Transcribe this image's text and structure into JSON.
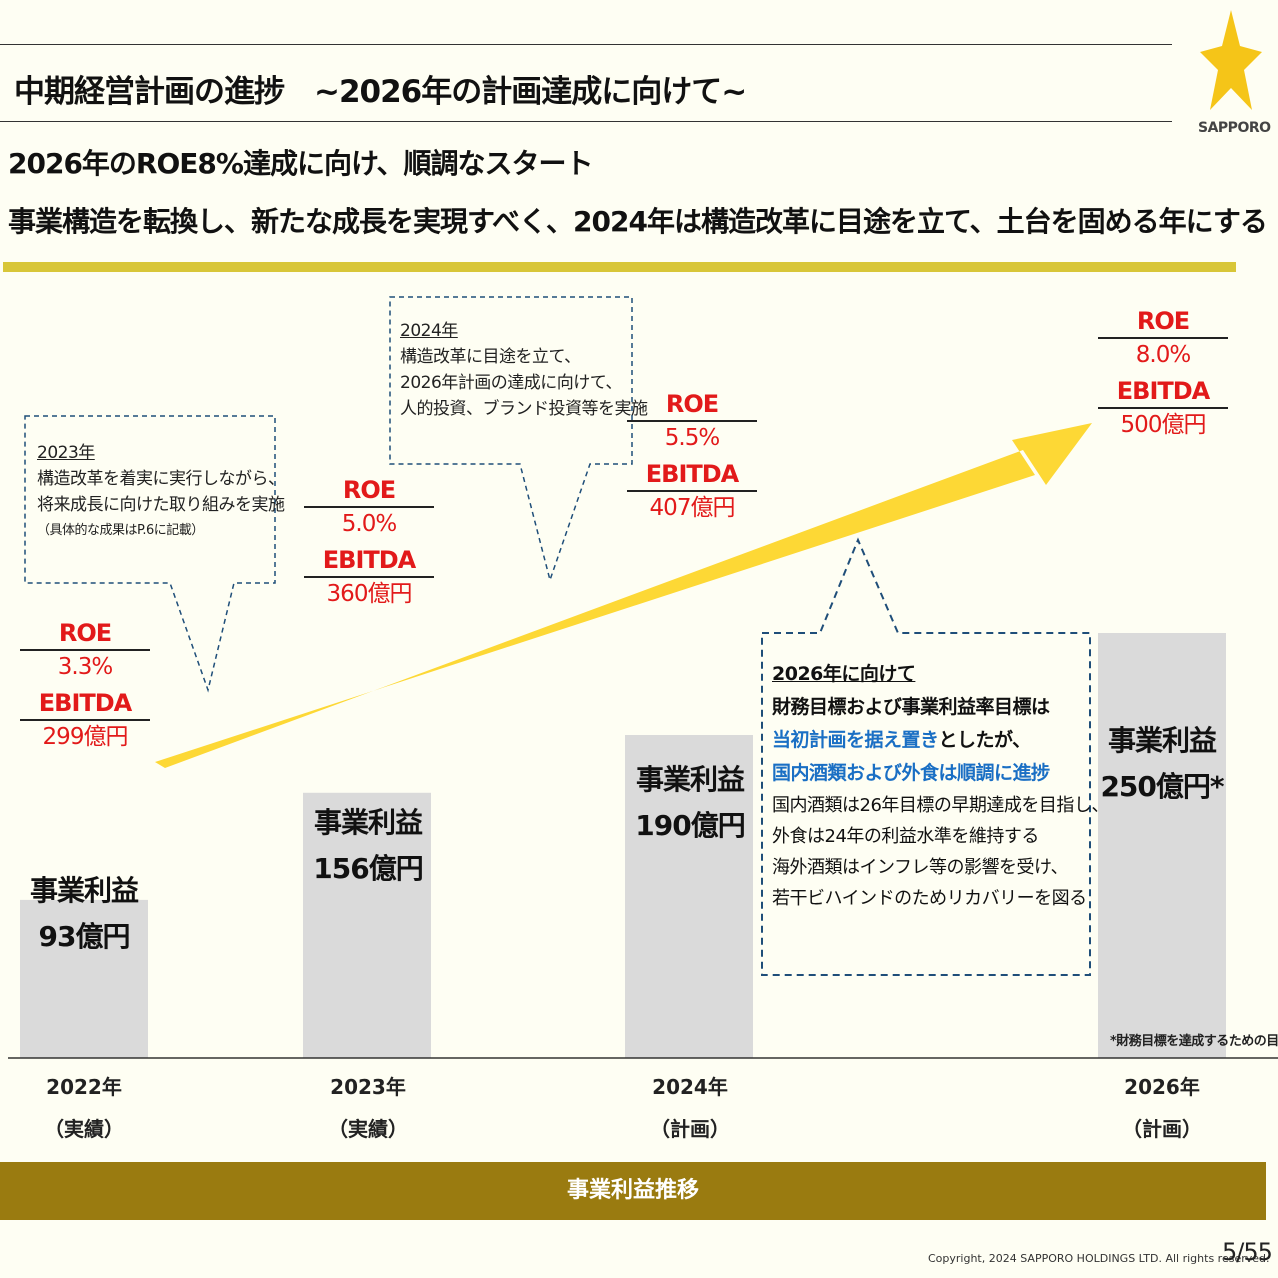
{
  "header": {
    "title": "中期経営計画の進捗　~2026年の計画達成に向けて~",
    "subtitle_line1": "2026年のROE8%達成に向け、順調なスタート",
    "subtitle_line2": "事業構造を転換し、新たな成長を実現すべく、2024年は構造改革に目途を立て、土台を固める年にする",
    "logo_text": "SAPPORO"
  },
  "colors": {
    "accent_yellow": "#d8c638",
    "arrow_yellow": "#fdd835",
    "star_yellow": "#f5c518",
    "bar_gray": "#dadada",
    "metric_red": "#e21a1a",
    "highlight_blue": "#1a6fc4",
    "footer_gold": "#9a7b10"
  },
  "chart_data": {
    "type": "bar",
    "title": "事業利益推移",
    "categories": [
      "2022年",
      "2023年",
      "2024年",
      "2026年"
    ],
    "category_sublabels": [
      "（実績）",
      "（実績）",
      "（計画）",
      "（計画）"
    ],
    "values": [
      93,
      156,
      190,
      250
    ],
    "unit": "億円",
    "value_label": "事業利益",
    "value_texts": [
      "93億円",
      "156億円",
      "190億円",
      "250億円*"
    ],
    "roe_label": "ROE",
    "roe": [
      "3.3%",
      "5.0%",
      "5.5%",
      "8.0%"
    ],
    "ebitda_label": "EBITDA",
    "ebitda": [
      "299億円",
      "360億円",
      "407億円",
      "500億円"
    ],
    "ylim": [
      0,
      300
    ]
  },
  "notes": {
    "n2023": {
      "heading": "2023年",
      "lines": [
        "構造改革を着実に実行しながら、",
        "将来成長に向けた取り組みを実施"
      ],
      "small": "（具体的な成果はP.6に記載）"
    },
    "n2024": {
      "heading": "2024年",
      "lines": [
        "構造改革に目途を立て、",
        "2026年計画の達成に向けて、",
        "人的投資、ブランド投資等を実施"
      ]
    }
  },
  "callout": {
    "heading": "2026年に向けて",
    "line1": "財務目標および事業利益率目標は",
    "line2_blue": "当初計画を据え置き",
    "line2_rest": "としたが、",
    "line3_blue": "国内酒類および外食は順調に進捗",
    "details": [
      "国内酒類は26年目標の早期達成を目指し、",
      "外食は24年の利益水準を維持する",
      "海外酒類はインフレ等の影響を受け、",
      "若干ビハインドのためリカバリーを図る"
    ]
  },
  "footnote": "*財務目標を達成するための目安",
  "footer": {
    "copyright": "Copyright, 2024   SAPPORO HOLDINGS LTD.  All rights reserved.",
    "page": "5/55"
  }
}
